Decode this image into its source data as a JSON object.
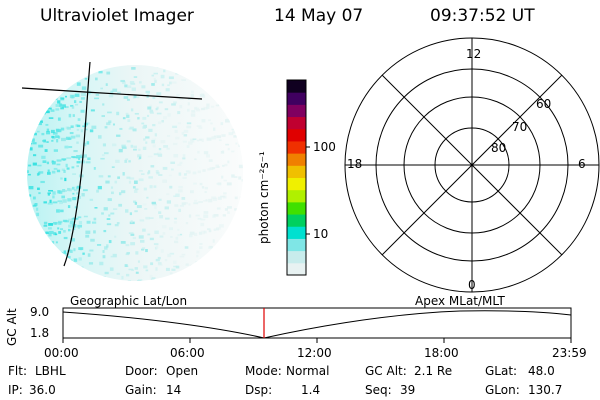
{
  "header": {
    "instrument": "Ultraviolet Imager",
    "date": "14 May 07",
    "time": "09:37:52 UT"
  },
  "colorbar": {
    "unit": "photon cm⁻²s⁻¹",
    "ticks": [
      "100",
      "10"
    ],
    "colors": [
      "#e8f2f2",
      "#c8ecec",
      "#7fe6e6",
      "#00e0d0",
      "#00d060",
      "#40e000",
      "#b0f000",
      "#f0f000",
      "#f0c000",
      "#f08000",
      "#f03000",
      "#e00000",
      "#c00030",
      "#800060",
      "#400060",
      "#100020"
    ]
  },
  "polar_plot": {
    "mlt_labels": {
      "top": "12",
      "left": "18",
      "right": "6",
      "bottom": "0"
    },
    "lat_labels": [
      "60",
      "70",
      "80"
    ]
  },
  "timeline": {
    "left_label": "Geographic Lat/Lon",
    "right_label": "Apex MLat/MLT",
    "y_axis_title": "GC Alt",
    "y_ticks": [
      "9.0",
      "1.8"
    ],
    "x_ticks": [
      "00:00",
      "06:00",
      "12:00",
      "18:00",
      "23:59"
    ],
    "current_time_marker": "09:37:52"
  },
  "status": {
    "flt_label": "Flt:",
    "flt_value": "LBHL",
    "ip_label": "IP:",
    "ip_value": "36.0",
    "door_label": "Door:",
    "door_value": "Open",
    "gain_label": "Gain:",
    "gain_value": "14",
    "mode_label": "Mode:",
    "mode_value": "Normal",
    "dsp_label": "Dsp:",
    "dsp_value": "1.4",
    "gcalt_label": "GC Alt:",
    "gcalt_value": "2.1 Re",
    "seq_label": "Seq:",
    "seq_value": "39",
    "glat_label": "GLat:",
    "glat_value": "48.0",
    "glon_label": "GLon:",
    "glon_value": "130.7"
  }
}
